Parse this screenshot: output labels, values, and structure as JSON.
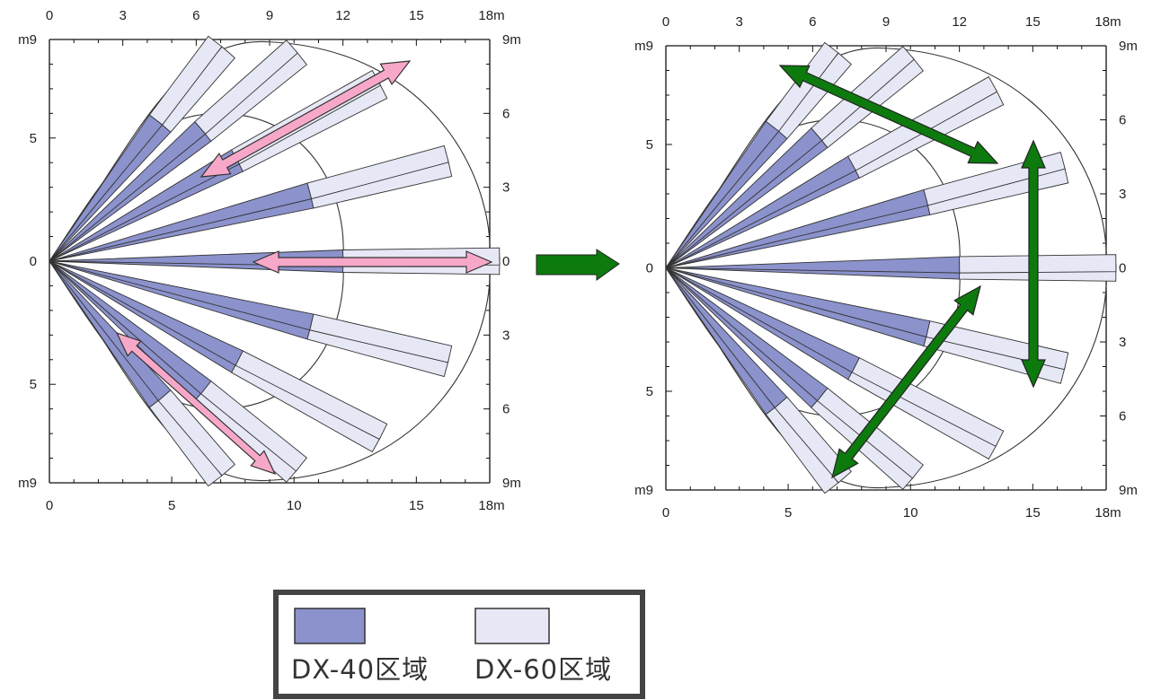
{
  "colors": {
    "dx40": "#8b92cc",
    "dx60": "#e6e8f5",
    "pink_arrow": "#f7a8c9",
    "green_arrow": "#0d7a0d",
    "frame": "#111111"
  },
  "left_diagram": {
    "top_ticks": [
      "0",
      "3",
      "6",
      "9",
      "12",
      "15",
      "18m"
    ],
    "bottom_ticks": [
      "0",
      "5",
      "10",
      "15",
      "18m"
    ],
    "left_ticks": [
      "m9",
      "5",
      "0",
      "5",
      "m9"
    ],
    "right_ticks": [
      "9m",
      "6",
      "3",
      "0",
      "3",
      "6",
      "9m"
    ]
  },
  "right_diagram": {
    "top_ticks": [
      "0",
      "3",
      "6",
      "9",
      "12",
      "15",
      "18m"
    ],
    "bottom_ticks": [
      "0",
      "5",
      "10",
      "15",
      "18m"
    ],
    "left_ticks": [
      "m9",
      "5",
      "0",
      "5",
      "m9"
    ],
    "right_ticks": [
      "9m",
      "6",
      "3",
      "0",
      "3",
      "6",
      "9m"
    ]
  },
  "legend": {
    "dx40_label": "DX-40区域",
    "dx60_label": "DX-60区域"
  },
  "transition_arrow_icon": "right-arrow-icon"
}
